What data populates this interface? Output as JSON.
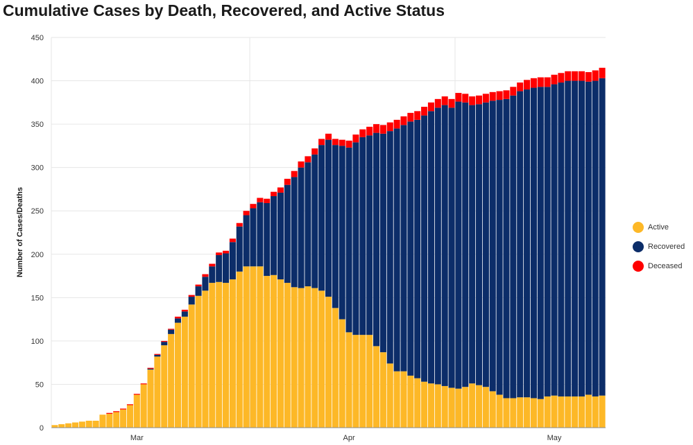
{
  "title": "Cumulative Cases by Death, Recovered, and Active Status",
  "colors": {
    "Active": "#FDB827",
    "Recovered": "#0C2D69",
    "Deceased": "#FF0000",
    "grid": "#e6e6e6",
    "axis": "#888888"
  },
  "legend": [
    {
      "name": "Active",
      "color": "#FDB827"
    },
    {
      "name": "Recovered",
      "color": "#0C2D69"
    },
    {
      "name": "Deceased",
      "color": "#FF0000"
    }
  ],
  "chart_data": {
    "type": "bar",
    "stacked": true,
    "title": "Cumulative Cases by Death, Recovered, and Active Status",
    "ylabel": "Number of Cases/Deaths",
    "xlabel": "",
    "ylim": [
      0,
      450
    ],
    "yticks": [
      0,
      50,
      100,
      150,
      200,
      250,
      300,
      350,
      400,
      450
    ],
    "x_tick_labels": [
      {
        "label": "Mar",
        "at_index": 12
      },
      {
        "label": "Apr",
        "at_index": 43
      },
      {
        "label": "May",
        "at_index": 73
      }
    ],
    "x_gridline_indices": [
      0,
      29,
      59
    ],
    "legend_position": "right",
    "grid": true,
    "series": [
      {
        "name": "Active",
        "values": [
          3,
          4,
          5,
          6,
          7,
          8,
          8,
          15,
          16,
          18,
          21,
          26,
          38,
          50,
          67,
          82,
          95,
          108,
          121,
          128,
          142,
          152,
          158,
          167,
          168,
          167,
          171,
          180,
          186,
          186,
          186,
          175,
          176,
          171,
          167,
          162,
          161,
          163,
          161,
          158,
          151,
          138,
          125,
          110,
          107,
          107,
          107,
          94,
          87,
          74,
          65,
          65,
          60,
          57,
          53,
          51,
          50,
          48,
          46,
          45,
          47,
          51,
          49,
          47,
          42,
          38,
          34,
          34,
          35,
          35,
          34,
          33,
          36,
          37,
          36,
          36,
          36,
          36,
          38,
          36,
          37
        ]
      },
      {
        "name": "Recovered",
        "values": [
          0,
          0,
          0,
          0,
          0,
          0,
          0,
          0,
          0,
          0,
          0,
          0,
          0,
          0,
          1,
          2,
          4,
          5,
          5,
          6,
          9,
          11,
          16,
          19,
          31,
          34,
          43,
          52,
          59,
          67,
          74,
          84,
          91,
          100,
          113,
          127,
          139,
          143,
          154,
          168,
          181,
          188,
          200,
          213,
          222,
          228,
          230,
          246,
          252,
          268,
          280,
          284,
          293,
          298,
          307,
          314,
          319,
          324,
          323,
          331,
          328,
          321,
          324,
          328,
          335,
          340,
          345,
          349,
          353,
          355,
          358,
          360,
          357,
          359,
          362,
          364,
          364,
          364,
          361,
          364,
          366
        ]
      },
      {
        "name": "Deceased",
        "values": [
          0,
          0,
          0,
          0,
          0,
          0,
          0,
          0,
          1,
          1,
          1,
          1,
          1,
          1,
          1,
          1,
          1,
          1,
          2,
          2,
          2,
          2,
          3,
          3,
          3,
          3,
          4,
          4,
          5,
          5,
          5,
          5,
          5,
          6,
          7,
          7,
          7,
          7,
          7,
          7,
          7,
          7,
          7,
          8,
          9,
          9,
          10,
          10,
          10,
          10,
          10,
          10,
          10,
          10,
          10,
          10,
          10,
          10,
          10,
          10,
          10,
          10,
          10,
          10,
          10,
          10,
          10,
          10,
          10,
          11,
          11,
          11,
          11,
          11,
          11,
          11,
          11,
          11,
          11,
          12,
          12
        ]
      }
    ]
  }
}
